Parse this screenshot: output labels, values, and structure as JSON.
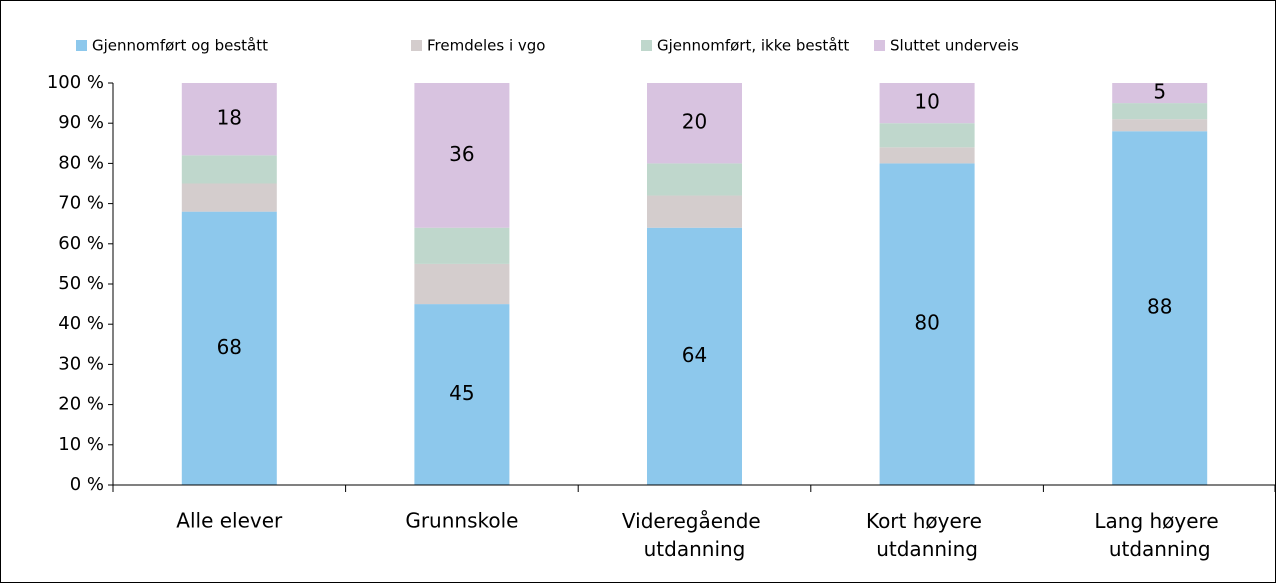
{
  "chart_data": {
    "type": "stacked_bar",
    "categories": [
      "Alle elever",
      "Grunnskole",
      "Videregående utdanning",
      "Kort høyere utdanning",
      "Lang høyere utdanning"
    ],
    "series": [
      {
        "name": "Gjennomført og bestått",
        "color": "#8dc8ec",
        "values": [
          68,
          45,
          64,
          80,
          88
        ],
        "show_labels": true
      },
      {
        "name": "Fremdeles i vgo",
        "color": "#d4cdcd",
        "values": [
          7,
          10,
          8,
          4,
          3
        ],
        "show_labels": false
      },
      {
        "name": "Gjennomført, ikke bestått",
        "color": "#bfd7cc",
        "values": [
          7,
          9,
          8,
          6,
          4
        ],
        "show_labels": false
      },
      {
        "name": "Sluttet underveis",
        "color": "#d8c3e0",
        "values": [
          18,
          36,
          20,
          10,
          5
        ],
        "show_labels": true
      }
    ],
    "ylim": [
      0,
      100
    ],
    "yticks": [
      {
        "value": 0,
        "label": "0 %"
      },
      {
        "value": 10,
        "label": "10 %"
      },
      {
        "value": 20,
        "label": "20 %"
      },
      {
        "value": 30,
        "label": "30 %"
      },
      {
        "value": 40,
        "label": "40 %"
      },
      {
        "value": 50,
        "label": "50 %"
      },
      {
        "value": 60,
        "label": "60 %"
      },
      {
        "value": 70,
        "label": "70 %"
      },
      {
        "value": 80,
        "label": "80 %"
      },
      {
        "value": 90,
        "label": "90 %"
      },
      {
        "value": 100,
        "label": "100 %"
      }
    ],
    "legend": "top",
    "grid": false
  }
}
